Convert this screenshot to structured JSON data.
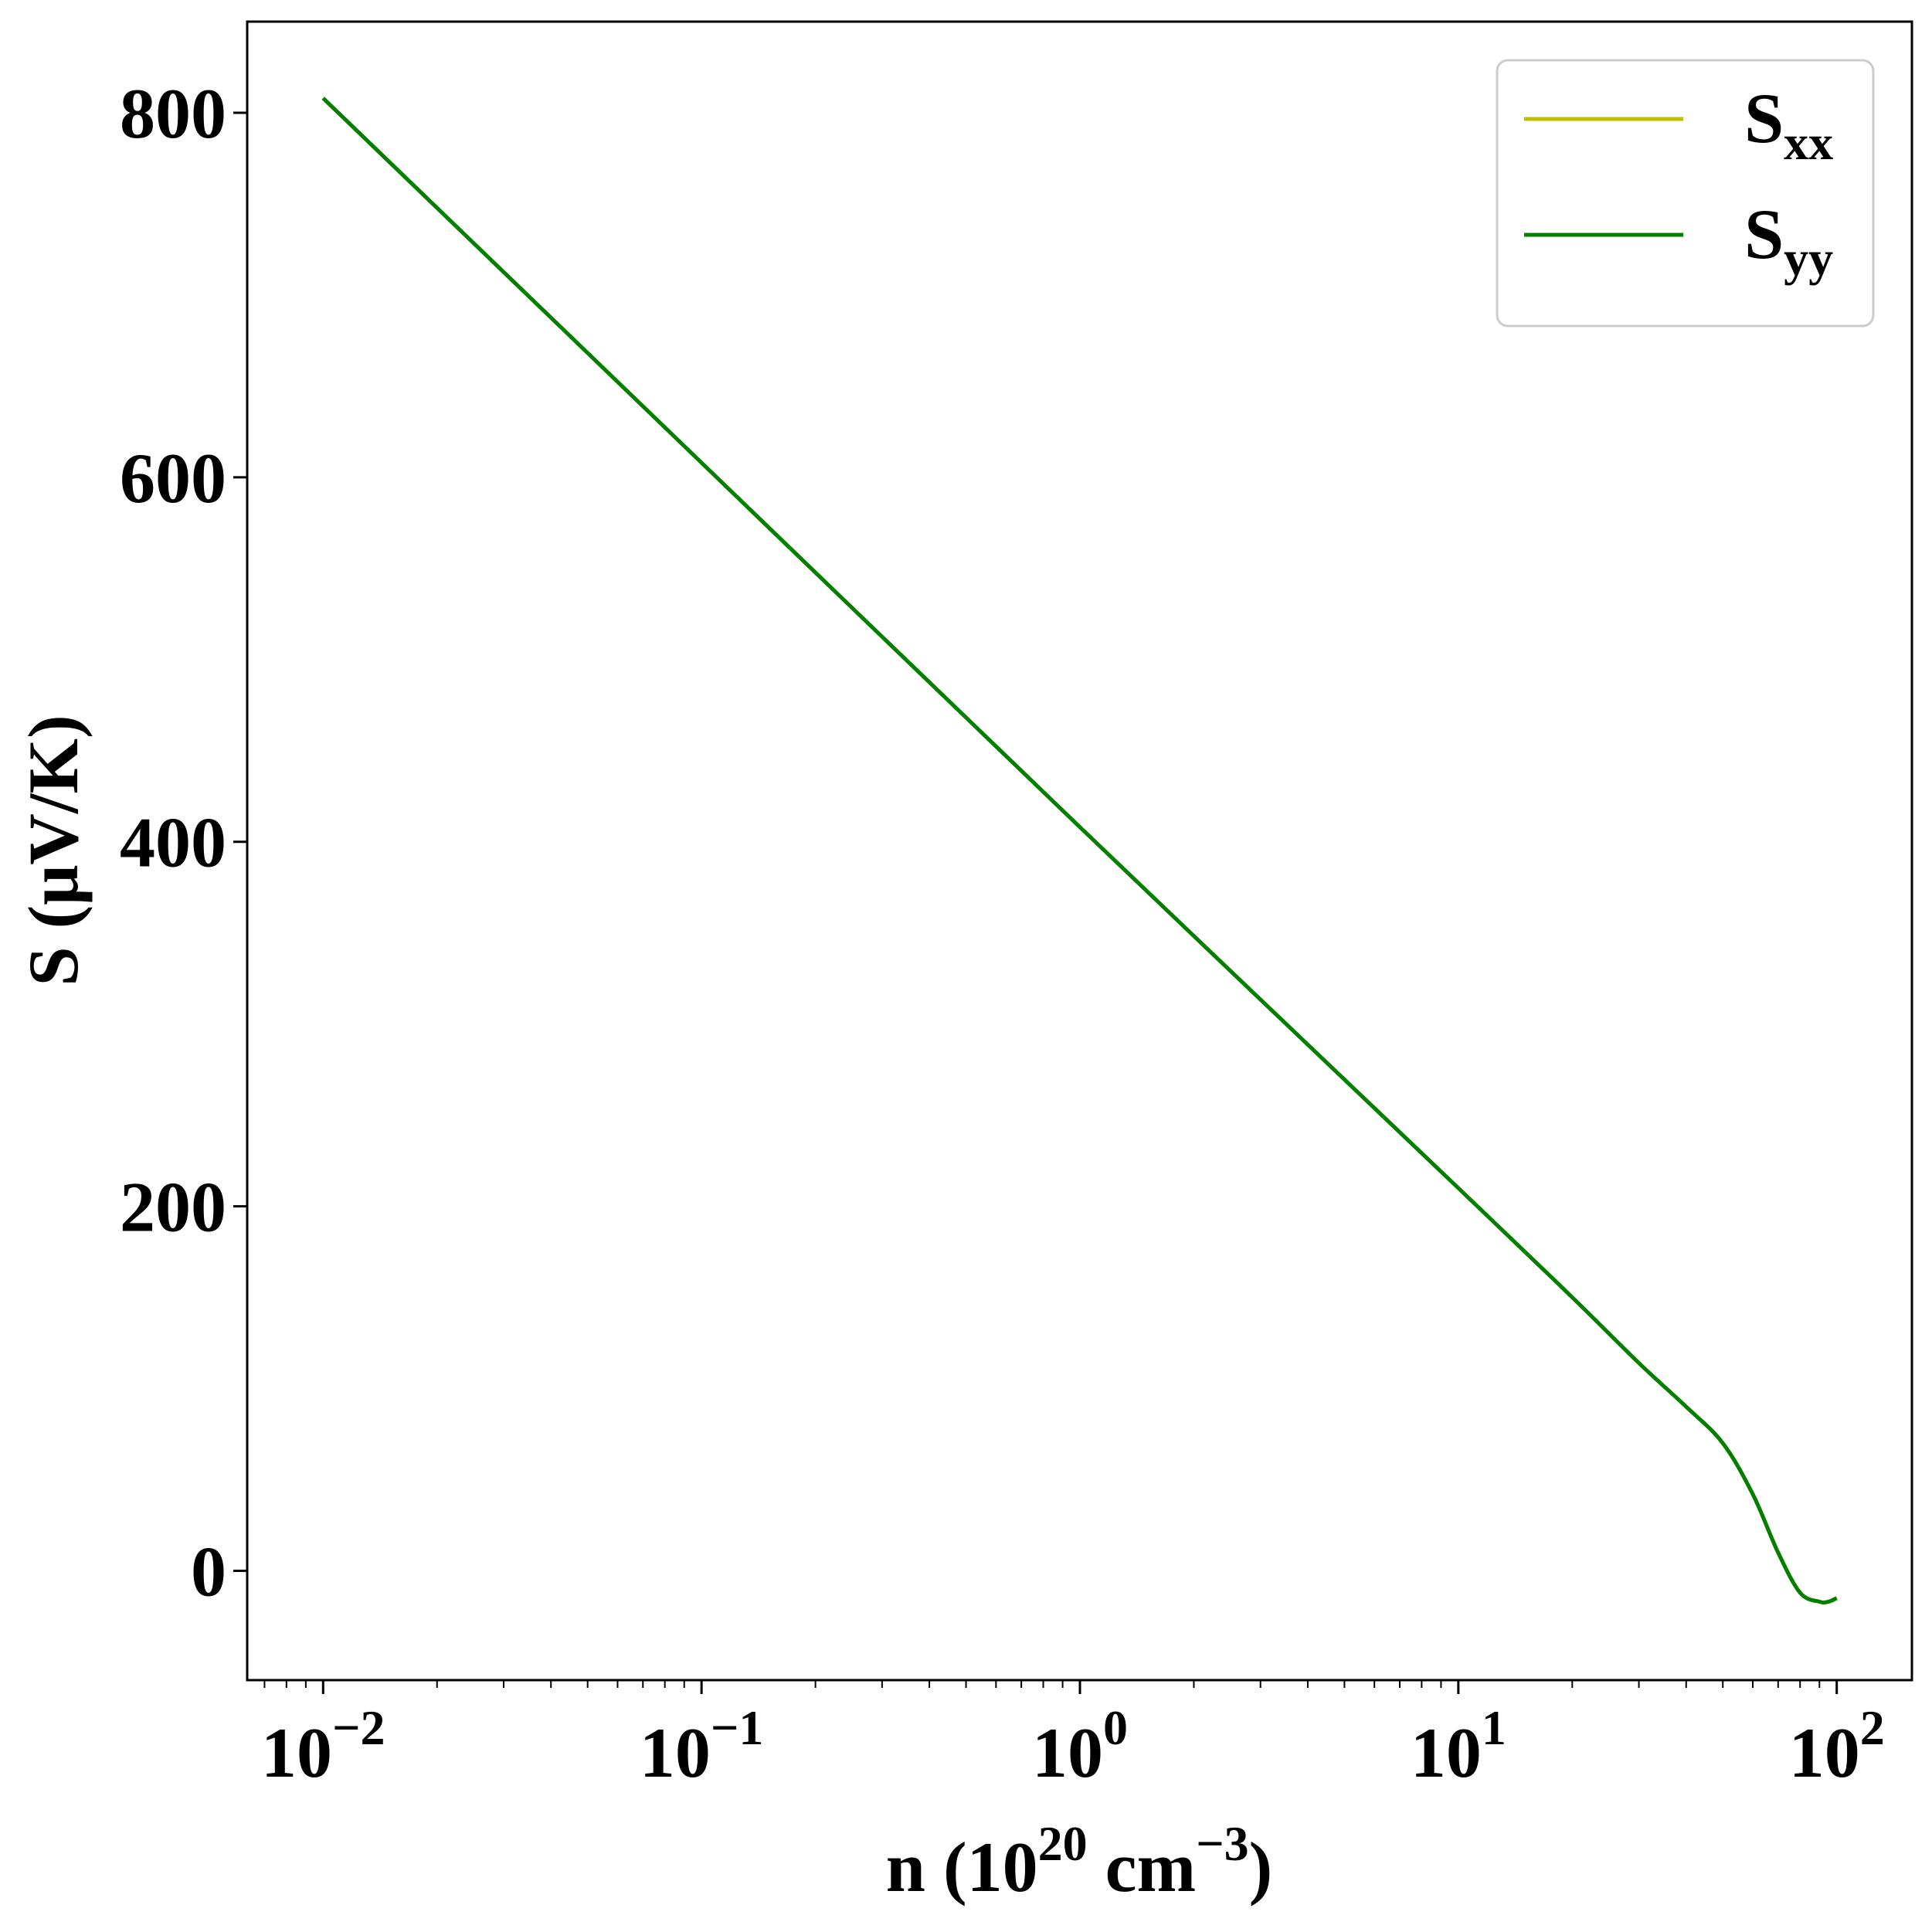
{
  "chart_data": {
    "type": "line",
    "xscale": "log",
    "xlim": [
      0.0063,
      158
    ],
    "ylim": [
      -60,
      850
    ],
    "xlabel": {
      "main": "n (10",
      "sup1": "20",
      "mid": " cm",
      "sup2": "−3",
      "end": ")"
    },
    "ylabel": "S (μV/K)",
    "xticks": [
      {
        "value": 0.01,
        "base": "10",
        "exp": "−2"
      },
      {
        "value": 0.1,
        "base": "10",
        "exp": "−1"
      },
      {
        "value": 1,
        "base": "10",
        "exp": "0"
      },
      {
        "value": 10,
        "base": "10",
        "exp": "1"
      },
      {
        "value": 100,
        "base": "10",
        "exp": "2"
      }
    ],
    "yticks": [
      0,
      200,
      400,
      600,
      800
    ],
    "legend": {
      "position": "top-right"
    },
    "series": [
      {
        "name": "S",
        "sub": "xx",
        "color": "#bfbf00",
        "x": [
          0.01,
          0.1,
          1,
          10,
          20,
          30,
          40,
          50,
          60,
          70,
          80,
          90,
          95,
          100
        ],
        "y": [
          808,
          608,
          408,
          210,
          150,
          114,
          90,
          70,
          42,
          10,
          -12,
          -17,
          -17,
          -15
        ]
      },
      {
        "name": "S",
        "sub": "yy",
        "color": "#007f00",
        "x": [
          0.01,
          0.1,
          1,
          10,
          20,
          30,
          40,
          50,
          60,
          70,
          80,
          90,
          95,
          100
        ],
        "y": [
          808,
          608,
          408,
          210,
          150,
          114,
          90,
          70,
          42,
          10,
          -12,
          -17,
          -17,
          -15
        ]
      }
    ]
  }
}
